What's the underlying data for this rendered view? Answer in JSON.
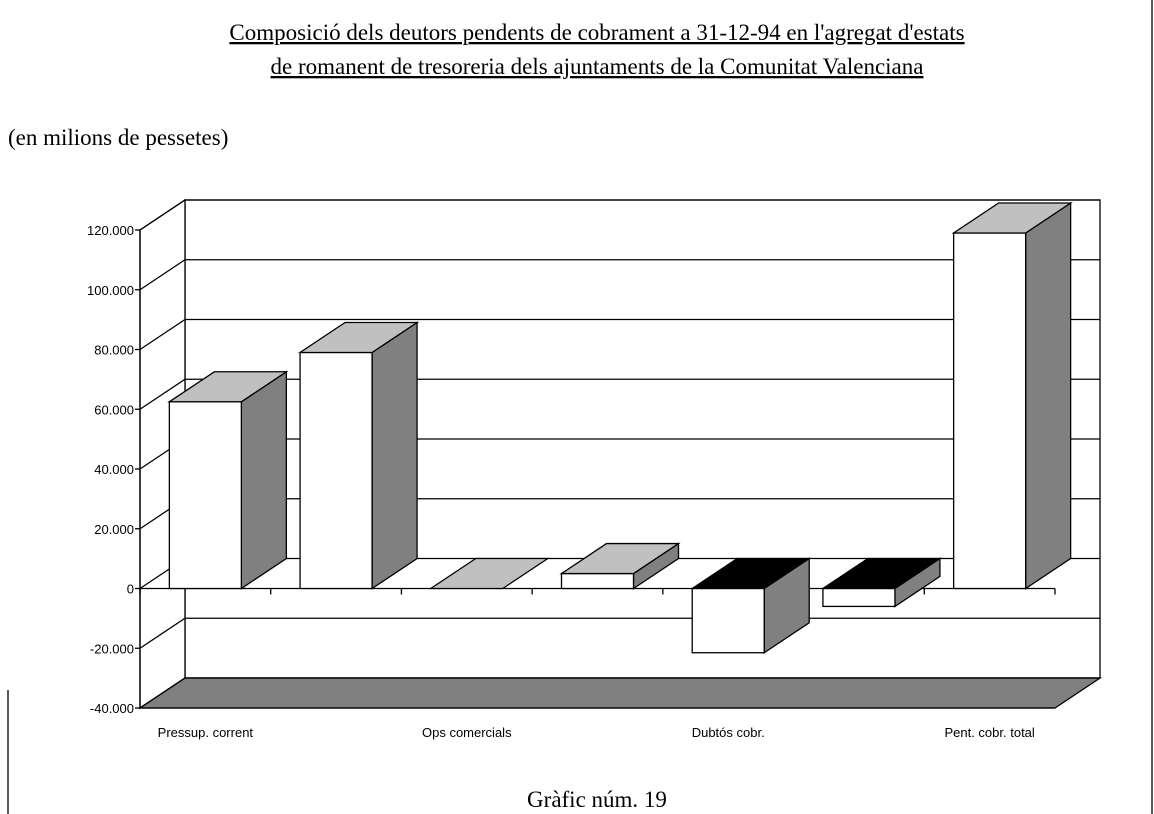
{
  "chart_data": {
    "type": "bar3d",
    "title": [
      "Composició dels deutors pendents de cobrament a 31-12-94 en l'agregat d'estats",
      "de romanent de tresoreria dels ajuntaments de la Comunitat Valenciana"
    ],
    "subtitle": "(en milions de pessetes)",
    "caption": "Gràfic núm. 19",
    "categories": [
      "Pressup. corrent",
      null,
      "Ops comercials",
      null,
      "Dubtós cobr.",
      null,
      "Pent. cobr. total"
    ],
    "values": [
      62500,
      79000,
      0,
      5000,
      -21500,
      -6000,
      119000
    ],
    "colors": {
      "front": "#ffffff",
      "top": "#c0c0c0",
      "side": "#808080",
      "negative_top": "#000000",
      "floor": "#808080"
    },
    "ylim": [
      -40000,
      120000
    ],
    "yticks": [
      {
        "value": -40000,
        "label": "-40.000"
      },
      {
        "value": -20000,
        "label": "-20.000"
      },
      0,
      {
        "value": 20000,
        "label": "20.000"
      },
      {
        "value": 40000,
        "label": "40.000"
      },
      {
        "value": 60000,
        "label": "60.000"
      },
      {
        "value": 80000,
        "label": "80.000"
      },
      {
        "value": 100000,
        "label": "100.000"
      },
      {
        "value": 120000,
        "label": "120.000"
      }
    ],
    "grid": true
  }
}
